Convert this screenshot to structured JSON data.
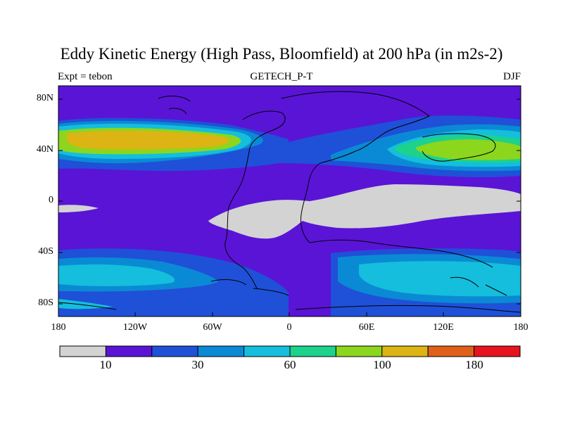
{
  "title": "Eddy Kinetic Energy (High Pass, Bloomfield) at 200 hPa (in m2s-2)",
  "subtitle_left": "Expt = tebon",
  "subtitle_center": "GETECH_P-T",
  "subtitle_right": "DJF",
  "lat_labels": [
    "80N",
    "40N",
    "0",
    "40S",
    "80S"
  ],
  "lon_labels": [
    "180",
    "120W",
    "60W",
    "0",
    "60E",
    "120E",
    "180"
  ],
  "colorbar": {
    "colors": [
      "#d3d3d3",
      "#5a14d6",
      "#1f50d8",
      "#0a8ad4",
      "#14bedc",
      "#1cd28c",
      "#8cd61e",
      "#dcb414",
      "#e0601a",
      "#e6141e"
    ],
    "labels": [
      "10",
      "30",
      "60",
      "100",
      "180"
    ]
  }
}
